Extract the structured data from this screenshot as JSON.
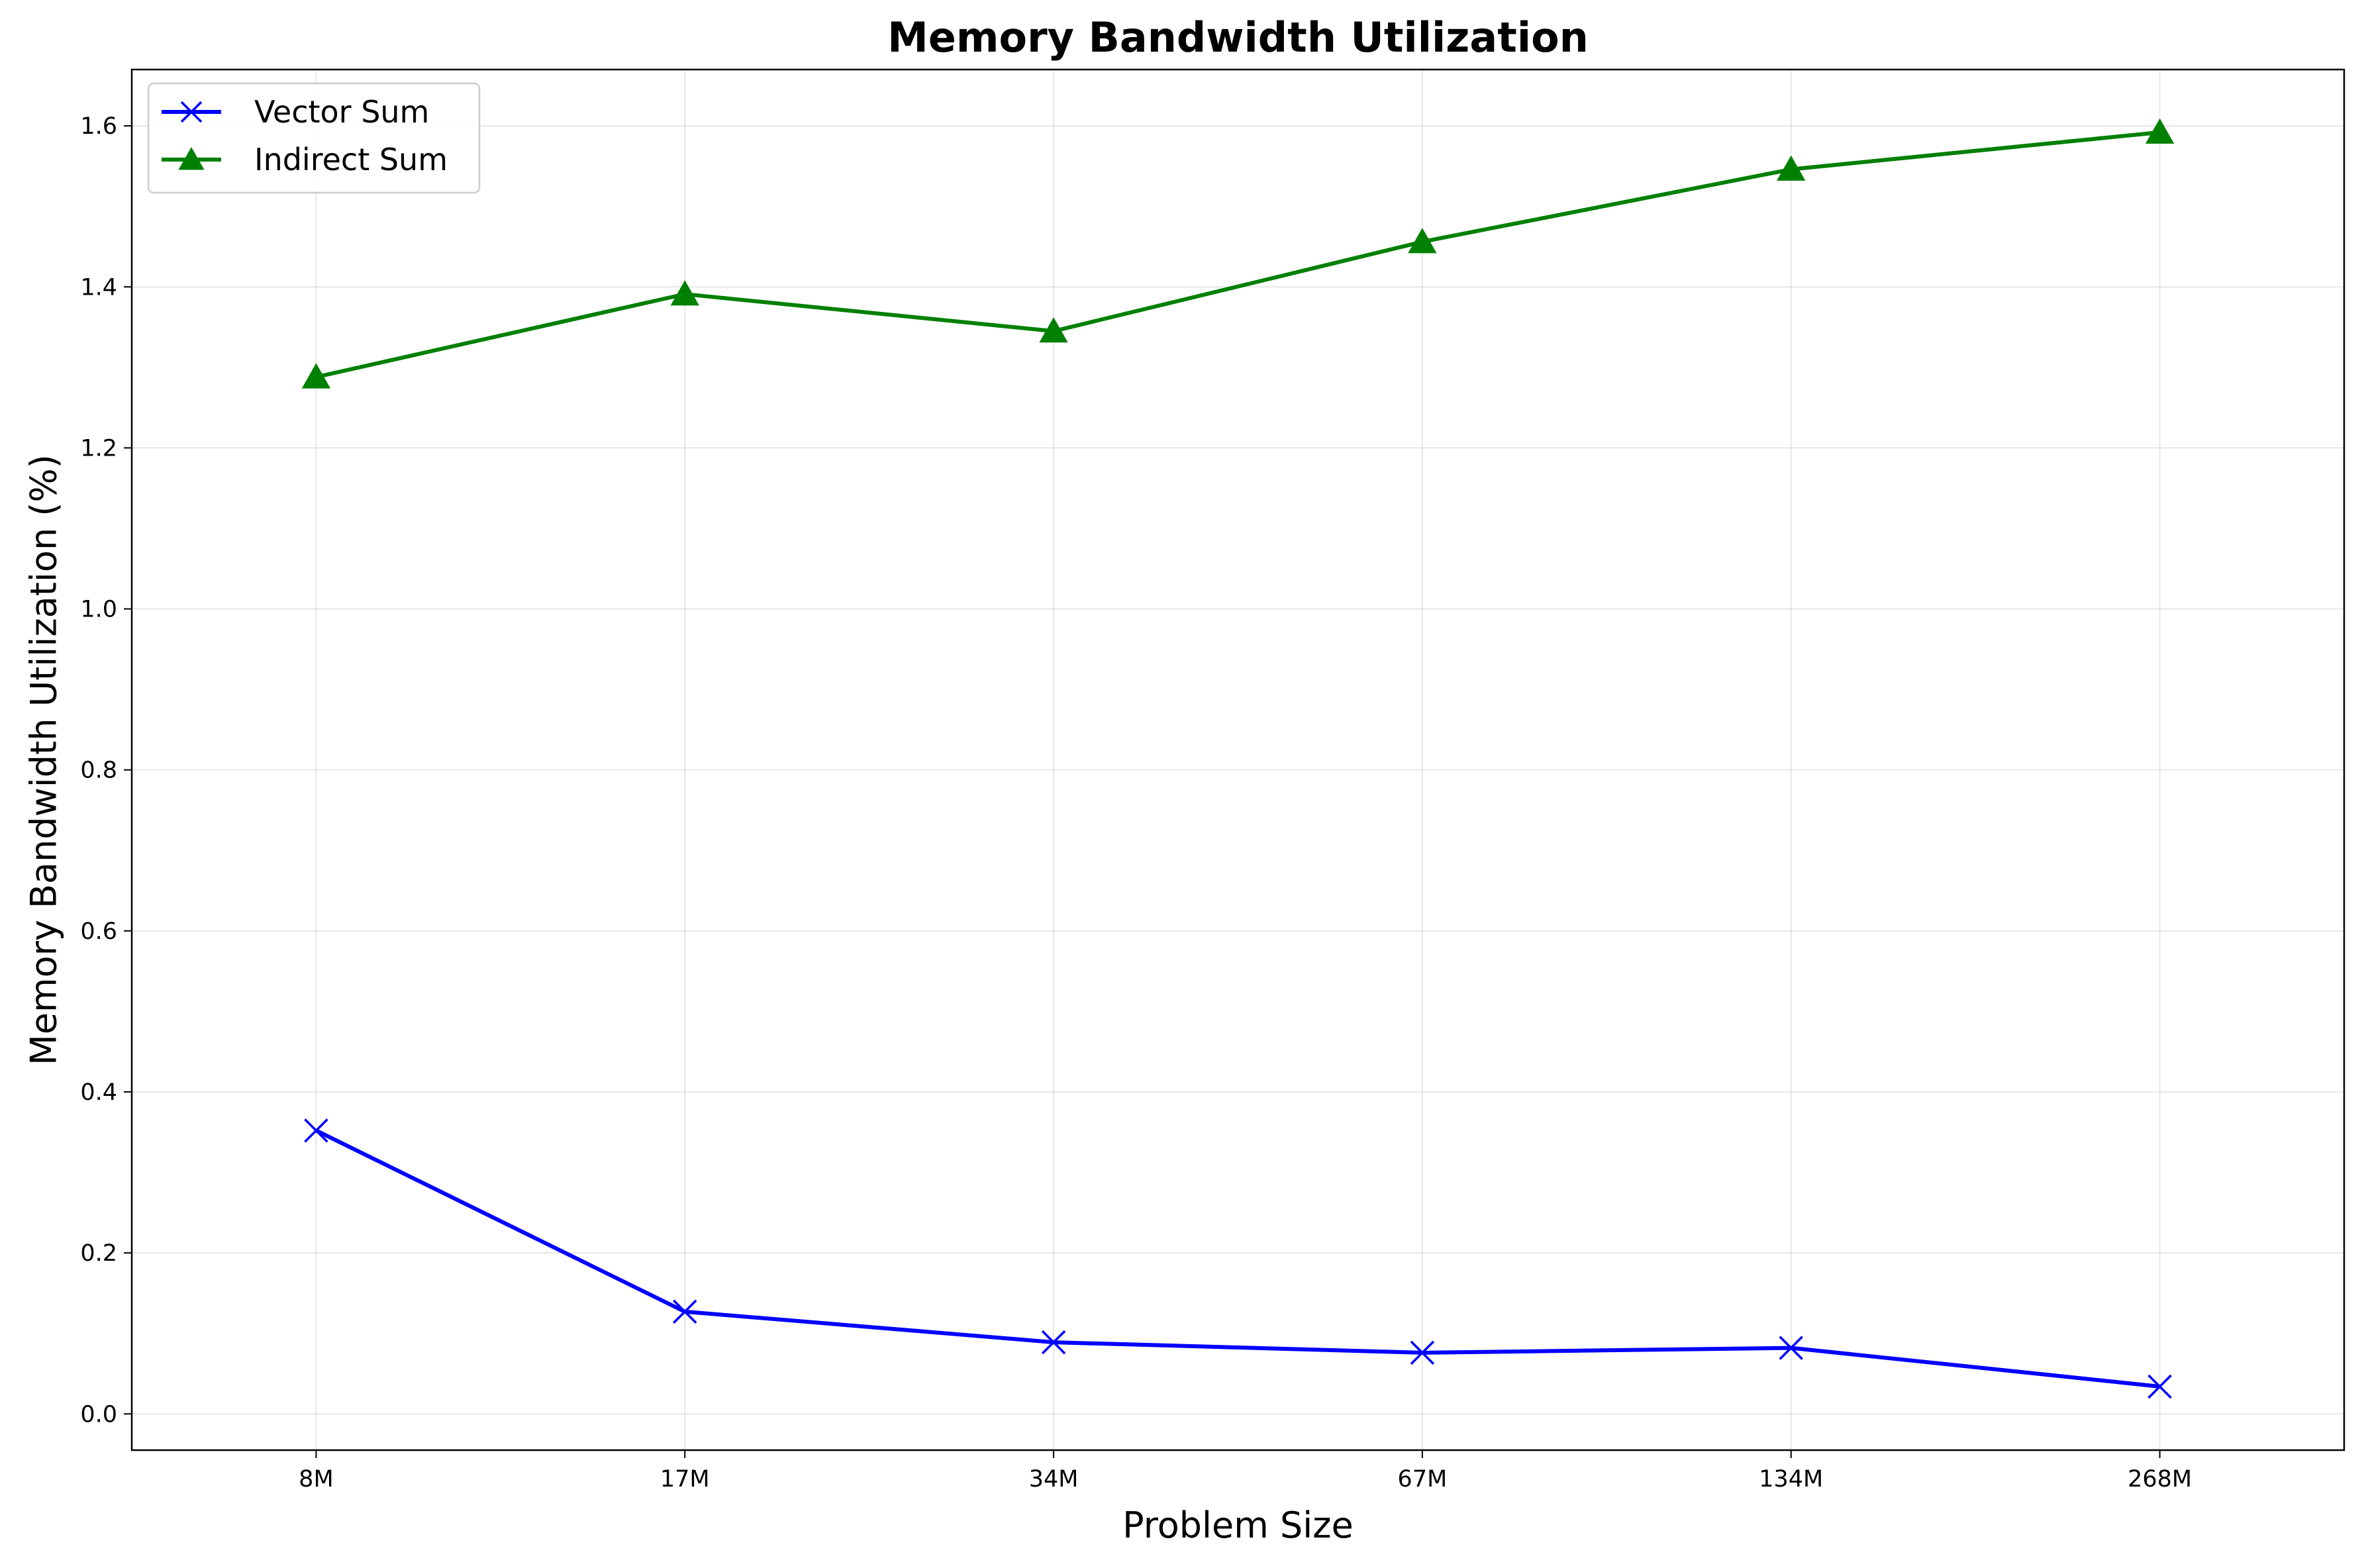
{
  "chart_data": {
    "type": "line",
    "title": "Memory Bandwidth Utilization",
    "xlabel": "Problem Size",
    "ylabel": "Memory Bandwidth Utilization (%)",
    "categories": [
      "8M",
      "17M",
      "34M",
      "67M",
      "134M",
      "268M"
    ],
    "yticks": [
      "0.0",
      "0.2",
      "0.4",
      "0.6",
      "0.8",
      "1.0",
      "1.2",
      "1.4",
      "1.6"
    ],
    "ylim": [
      -0.045,
      1.67
    ],
    "grid": true,
    "legend_position": "upper-left",
    "series": [
      {
        "name": "Vector Sum",
        "color": "#0000ff",
        "marker": "x",
        "values": [
          0.352,
          0.127,
          0.089,
          0.076,
          0.082,
          0.034
        ]
      },
      {
        "name": "Indirect Sum",
        "color": "#008000",
        "marker": "triangle-up",
        "values": [
          1.288,
          1.391,
          1.345,
          1.456,
          1.546,
          1.592
        ]
      }
    ]
  }
}
